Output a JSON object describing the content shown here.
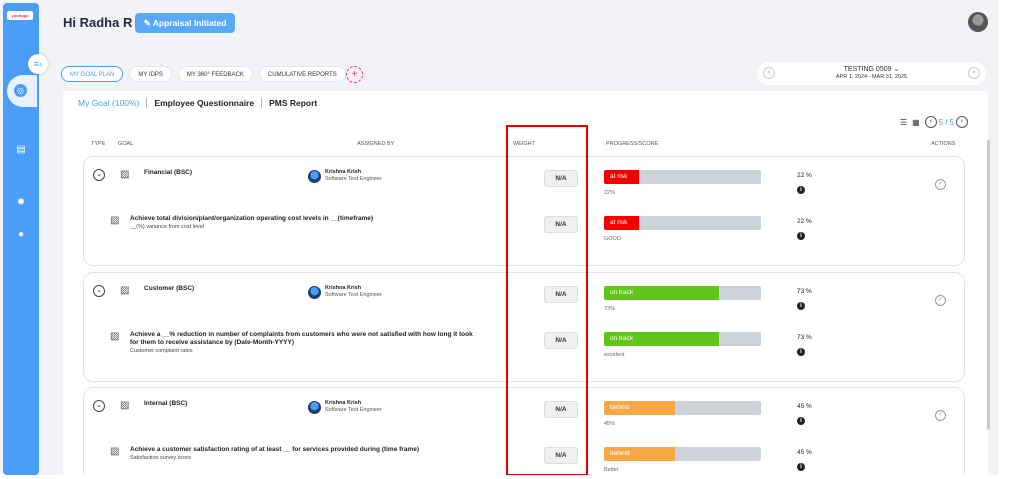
{
  "header": {
    "greeting": "Hi Radha R",
    "status_button": "Appraisal Initiated"
  },
  "sidebar": {
    "logo_text": "yourlogo",
    "icons": [
      "collapse-icon",
      "target-icon",
      "document-icon",
      "settings-icon",
      "user-icon"
    ]
  },
  "tabs": [
    {
      "label": "MY GOAL PLAN",
      "active": true
    },
    {
      "label": "MY IDPS"
    },
    {
      "label": "MY 360° FEEDBACK"
    },
    {
      "label": "CUMULATIVE REPORTS"
    }
  ],
  "period": {
    "name": "TESTING 0509 ⌄",
    "dates": "APR 1, 2024 - MAR 31, 2025"
  },
  "subtabs": [
    "My Goal (100%)",
    "Employee Questionnaire",
    "PMS Report"
  ],
  "pager": {
    "current": "5",
    "total": "5",
    "sep": "/"
  },
  "columns": {
    "type": "TYPE",
    "goal": "GOAL",
    "assigned_by": "ASSIGNED BY",
    "weight": "WEIGHT",
    "progress": "PROGRESS/SCORE",
    "actions": "ACTIONS"
  },
  "colors": {
    "at_risk": "#f20000",
    "on_track": "#62c61a",
    "behind": "#f7a745",
    "accent": "#4a9df6",
    "highlight": "#e10000"
  },
  "cards": [
    {
      "title": "Financial (BSC)",
      "assignee": {
        "name": "Krishna Krish",
        "role": "Software Test Engineer"
      },
      "weight": "N/A",
      "status": "at risk",
      "status_color": "#f20000",
      "progress": 0.22,
      "score": "22%",
      "pct": "22 %",
      "child": {
        "title": "Achieve total division/plant/organization operating cost levels in __(timeframe)",
        "sub": "__(%) variance from cost level",
        "weight": "N/A",
        "status": "at risk",
        "status_color": "#f20000",
        "progress": 0.22,
        "score": "GOOD",
        "pct": "22 %"
      }
    },
    {
      "title": "Customer (BSC)",
      "assignee": {
        "name": "Krishna Krish",
        "role": "Software Test Engineer"
      },
      "weight": "N/A",
      "status": "on track",
      "status_color": "#62c61a",
      "progress": 0.73,
      "score": "73%",
      "pct": "73 %",
      "child": {
        "title": "Achieve a __% reduction in number of complaints from customers who were not satisfied with how long it took for them to receive assistance by (Date-Month-YYYY)",
        "sub": "Customer complaint rates",
        "weight": "N/A",
        "status": "on track",
        "status_color": "#62c61a",
        "progress": 0.73,
        "score": "excelent",
        "pct": "73 %"
      }
    },
    {
      "title": "Internal (BSC)",
      "assignee": {
        "name": "Krishna Krish",
        "role": "Software Test Engineer"
      },
      "weight": "N/A",
      "status": "behind",
      "status_color": "#f7a745",
      "progress": 0.45,
      "score": "45%",
      "pct": "45 %",
      "child": {
        "title": "Achieve a customer satisfaction rating of at least __ for services provided during (time frame)",
        "sub": "Satisfaction survey score",
        "weight": "N/A",
        "status": "behind",
        "status_color": "#f7a745",
        "progress": 0.45,
        "score": "Better",
        "pct": "45 %"
      }
    }
  ]
}
